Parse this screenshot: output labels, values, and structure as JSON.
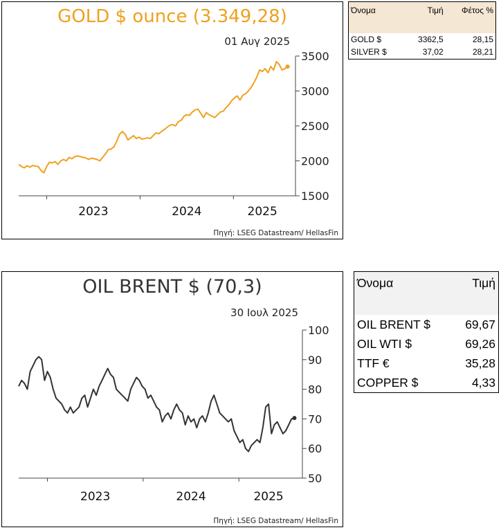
{
  "gold_panel": {
    "title": "GOLD $ ounce (3.349,28)",
    "date": "01 Αυγ 2025",
    "source": "Πηγή: LSEG Datastream/ HellasFin",
    "color": "#f0a01e"
  },
  "gold_table": {
    "headers": [
      "Όνομα",
      "Τιμή",
      "Φέτος %"
    ],
    "rows": [
      [
        "GOLD $",
        "3362,5",
        "28,15"
      ],
      [
        "SILVER $",
        "37,02",
        "28,21"
      ]
    ],
    "header_bg": "#f4e7d3"
  },
  "oil_panel": {
    "title": "OIL BRENT $ (70,3)",
    "date": "30 Ιουλ 2025",
    "source": "Πηγή: LSEG Datastream/ HellasFin",
    "color": "#333333"
  },
  "oil_table": {
    "headers": [
      "Όνομα",
      "Τιμή"
    ],
    "rows": [
      [
        "OIL BRENT $",
        "69,67"
      ],
      [
        "OIL WTI $",
        "69,26"
      ],
      [
        "TTF €",
        "35,28"
      ],
      [
        "COPPER $",
        "4,33"
      ]
    ],
    "header_bg": "#f2f2f2"
  },
  "chart_data": [
    {
      "type": "line",
      "title": "GOLD $ ounce (3.349,28)",
      "color": "#f0a01e",
      "ylim": [
        1500,
        3500
      ],
      "yticks": [
        1500,
        2000,
        2500,
        3000,
        3500
      ],
      "xlim": [
        2022.7,
        2025.62
      ],
      "xtick_labels": [
        "2023",
        "2024",
        "2025"
      ],
      "grid": false,
      "x": [
        2022.7,
        2022.73,
        2022.76,
        2022.79,
        2022.82,
        2022.85,
        2022.88,
        2022.91,
        2022.94,
        2022.97,
        2023.0,
        2023.03,
        2023.06,
        2023.09,
        2023.12,
        2023.15,
        2023.18,
        2023.21,
        2023.24,
        2023.27,
        2023.3,
        2023.33,
        2023.36,
        2023.39,
        2023.42,
        2023.45,
        2023.48,
        2023.51,
        2023.54,
        2023.57,
        2023.6,
        2023.63,
        2023.66,
        2023.69,
        2023.72,
        2023.75,
        2023.78,
        2023.81,
        2023.84,
        2023.87,
        2023.9,
        2023.93,
        2023.96,
        2023.99,
        2024.02,
        2024.05,
        2024.08,
        2024.11,
        2024.14,
        2024.17,
        2024.2,
        2024.23,
        2024.26,
        2024.29,
        2024.32,
        2024.35,
        2024.38,
        2024.41,
        2024.44,
        2024.47,
        2024.5,
        2024.53,
        2024.56,
        2024.59,
        2024.62,
        2024.65,
        2024.68,
        2024.71,
        2024.74,
        2024.77,
        2024.8,
        2024.83,
        2024.86,
        2024.89,
        2024.92,
        2024.95,
        2024.98,
        2025.01,
        2025.04,
        2025.07,
        2025.1,
        2025.13,
        2025.16,
        2025.19,
        2025.22,
        2025.25,
        2025.28,
        2025.31,
        2025.34,
        2025.37,
        2025.4,
        2025.43,
        2025.46,
        2025.49,
        2025.52,
        2025.55,
        2025.58
      ],
      "y": [
        1950,
        1920,
        1900,
        1930,
        1910,
        1935,
        1925,
        1920,
        1860,
        1830,
        1920,
        1980,
        1970,
        1990,
        1950,
        2000,
        2020,
        2000,
        2050,
        2030,
        2060,
        2070,
        2060,
        2050,
        2040,
        2020,
        2040,
        2030,
        2020,
        2000,
        2050,
        2100,
        2160,
        2170,
        2200,
        2280,
        2380,
        2420,
        2380,
        2300,
        2330,
        2360,
        2320,
        2340,
        2310,
        2320,
        2330,
        2320,
        2360,
        2400,
        2390,
        2420,
        2450,
        2480,
        2510,
        2520,
        2500,
        2560,
        2580,
        2640,
        2660,
        2650,
        2700,
        2730,
        2740,
        2680,
        2620,
        2690,
        2660,
        2640,
        2620,
        2660,
        2700,
        2710,
        2760,
        2800,
        2860,
        2900,
        2930,
        2870,
        2940,
        2960,
        3000,
        3050,
        3120,
        3200,
        3300,
        3280,
        3320,
        3260,
        3350,
        3300,
        3420,
        3380,
        3300,
        3320,
        3349
      ]
    },
    {
      "type": "line",
      "title": "OIL BRENT $ (70,3)",
      "color": "#333333",
      "ylim": [
        50,
        100
      ],
      "yticks": [
        50,
        60,
        70,
        80,
        90,
        100
      ],
      "xlim": [
        2022.7,
        2025.62
      ],
      "xtick_labels": [
        "2023",
        "2024",
        "2025"
      ],
      "grid": false,
      "x": [
        2022.7,
        2022.73,
        2022.76,
        2022.79,
        2022.82,
        2022.85,
        2022.88,
        2022.91,
        2022.94,
        2022.97,
        2023.0,
        2023.03,
        2023.06,
        2023.09,
        2023.12,
        2023.15,
        2023.18,
        2023.21,
        2023.24,
        2023.27,
        2023.3,
        2023.33,
        2023.36,
        2023.39,
        2023.42,
        2023.45,
        2023.48,
        2023.51,
        2023.54,
        2023.57,
        2023.6,
        2023.63,
        2023.66,
        2023.69,
        2023.72,
        2023.75,
        2023.78,
        2023.81,
        2023.84,
        2023.87,
        2023.9,
        2023.93,
        2023.96,
        2023.99,
        2024.02,
        2024.05,
        2024.08,
        2024.11,
        2024.14,
        2024.17,
        2024.2,
        2024.23,
        2024.26,
        2024.29,
        2024.32,
        2024.35,
        2024.38,
        2024.41,
        2024.44,
        2024.47,
        2024.5,
        2024.53,
        2024.56,
        2024.59,
        2024.62,
        2024.65,
        2024.68,
        2024.71,
        2024.74,
        2024.77,
        2024.8,
        2024.83,
        2024.86,
        2024.89,
        2024.92,
        2024.95,
        2024.98,
        2025.01,
        2025.04,
        2025.07,
        2025.1,
        2025.13,
        2025.16,
        2025.19,
        2025.22,
        2025.25,
        2025.28,
        2025.31,
        2025.34,
        2025.37,
        2025.4,
        2025.43,
        2025.46,
        2025.49,
        2025.52,
        2025.55,
        2025.58
      ],
      "y": [
        81,
        83,
        82,
        80,
        86,
        88,
        90,
        91,
        90,
        83,
        86,
        84,
        80,
        77,
        76,
        75,
        73,
        72,
        74,
        72,
        73,
        74,
        77,
        78,
        74,
        77,
        80,
        78,
        81,
        83,
        85,
        87,
        85,
        84,
        80,
        79,
        78,
        77,
        76,
        80,
        82,
        84,
        83,
        81,
        80,
        77,
        78,
        76,
        74,
        73,
        69,
        71,
        72,
        70,
        73,
        75,
        73,
        72,
        68,
        71,
        69,
        70,
        67,
        70,
        71,
        69,
        72,
        76,
        78,
        75,
        72,
        71,
        70,
        69,
        70,
        66,
        64,
        62,
        63,
        60,
        59,
        61,
        62,
        63,
        62,
        67,
        74,
        75,
        65,
        68,
        69,
        67,
        65,
        66,
        68,
        70,
        70.3
      ]
    }
  ]
}
